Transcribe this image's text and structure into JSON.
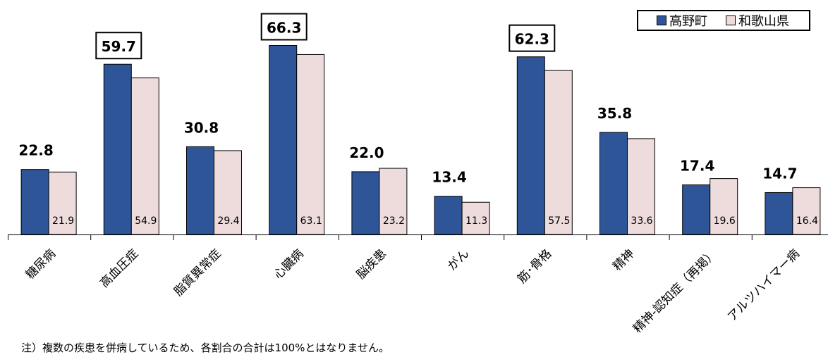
{
  "chart_data": {
    "type": "bar",
    "categories": [
      "糖尿病",
      "高血圧症",
      "脂質異常症",
      "心臓病",
      "脳疾患",
      "がん",
      "筋･骨格",
      "精神",
      "精神-認知症（再掲）",
      "アルツハイマー病"
    ],
    "series": [
      {
        "name": "高野町",
        "values": [
          22.8,
          59.7,
          30.8,
          66.3,
          22.0,
          13.4,
          62.3,
          35.8,
          17.4,
          14.7
        ],
        "color": "#2E5597"
      },
      {
        "name": "和歌山県",
        "values": [
          21.9,
          54.9,
          29.4,
          63.1,
          23.2,
          11.3,
          57.5,
          33.6,
          19.6,
          16.4
        ],
        "color": "#EEDCDD"
      }
    ],
    "boxed_labels": [
      1,
      3,
      6
    ],
    "ylim": [
      0,
      80
    ],
    "grid": false,
    "legend_position": "top-right"
  },
  "labels": {
    "series1_values": [
      "22.8",
      "59.7",
      "30.8",
      "66.3",
      "22.0",
      "13.4",
      "62.3",
      "35.8",
      "17.4",
      "14.7"
    ],
    "series2_values": [
      "21.9",
      "54.9",
      "29.4",
      "63.1",
      "23.2",
      "11.3",
      "57.5",
      "33.6",
      "19.6",
      "16.4"
    ]
  },
  "legend": {
    "item1": "高野町",
    "item2": "和歌山県"
  },
  "note": "注）複数の疾患を併病しているため、各割合の合計は100%とはなりません。"
}
